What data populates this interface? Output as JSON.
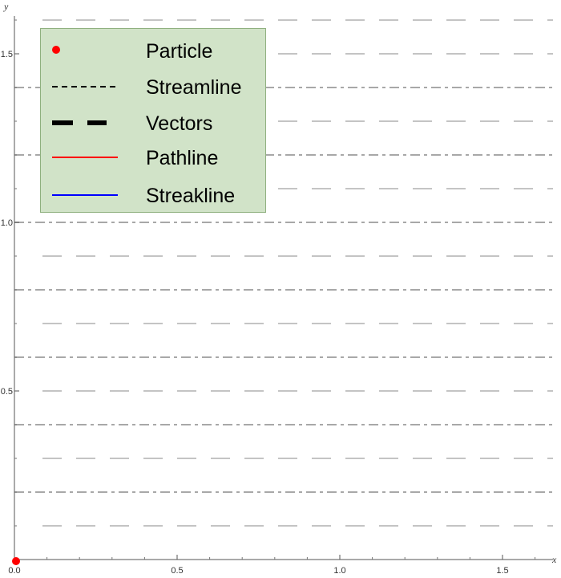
{
  "chart_data": {
    "type": "line",
    "title": "",
    "xlabel": "x",
    "ylabel": "y",
    "xlim": [
      0,
      1.65
    ],
    "ylim": [
      0,
      1.6
    ],
    "x_ticks": [
      "0.0",
      "0.5",
      "1.0",
      "1.5"
    ],
    "y_ticks": [
      "0.5",
      "1.0",
      "1.5"
    ],
    "grid": false,
    "legend_position": "top-left",
    "streamlines_y": [
      0.2,
      0.4,
      0.6,
      0.8,
      1.0,
      1.2,
      1.4
    ],
    "vector_rows_y": [
      0.1,
      0.3,
      0.5,
      0.7,
      0.9,
      1.1,
      1.3,
      1.5,
      1.6
    ],
    "particle": {
      "x": 0.0,
      "y": 0.0
    },
    "series": [
      {
        "name": "Particle",
        "color": "#ff0000"
      },
      {
        "name": "Streamline",
        "color": "#000000"
      },
      {
        "name": "Vectors",
        "color": "#000000"
      },
      {
        "name": "Pathline",
        "color": "#ff0000"
      },
      {
        "name": "Streakline",
        "color": "#0000ff"
      }
    ]
  },
  "legend": {
    "items": [
      {
        "label": "Particle",
        "icon": "red-dot"
      },
      {
        "label": "Streamline",
        "icon": "black-dashed-line"
      },
      {
        "label": "Vectors",
        "icon": "thick-black-dashes"
      },
      {
        "label": "Pathline",
        "icon": "red-line"
      },
      {
        "label": "Streakline",
        "icon": "blue-line"
      }
    ]
  },
  "colors": {
    "vector_dash": "#c4c4c4",
    "streamline_dash": "#a8a8a8",
    "legend_background": "#d1e3c8",
    "legend_border": "#8fb07f"
  }
}
